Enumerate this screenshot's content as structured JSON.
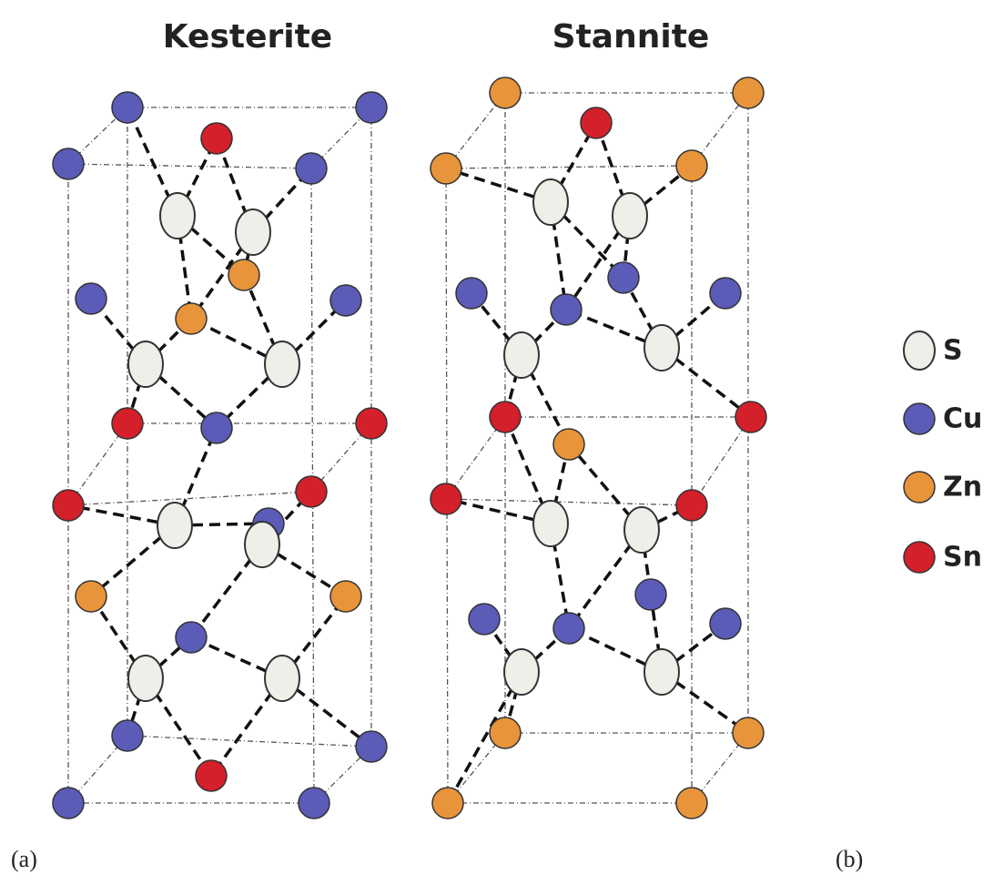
{
  "titles": {
    "kesterite": "Kesterite",
    "stannite": "Stannite"
  },
  "legend": [
    "S",
    "Cu",
    "Zn",
    "Sn"
  ],
  "panel_labels": [
    "(a)",
    "(b)"
  ]
}
